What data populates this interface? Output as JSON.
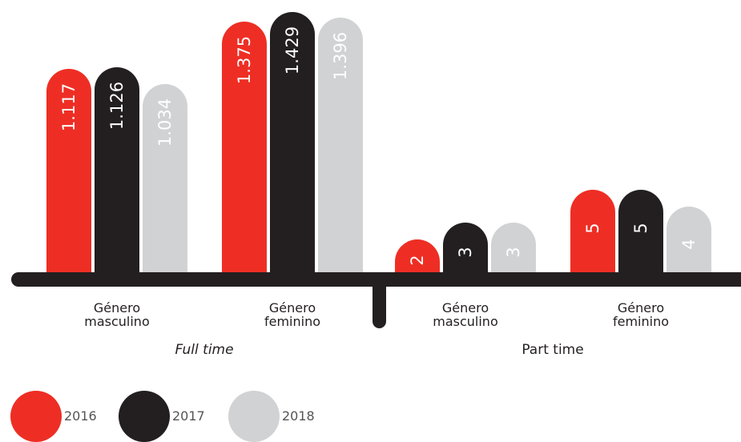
{
  "chart_data": [
    {
      "type": "bar",
      "title": "Full time",
      "categories": [
        "Género masculino",
        "Género feminino"
      ],
      "series": [
        {
          "name": "2016",
          "color": "#ee2e24",
          "values": [
            1117,
            1375
          ],
          "value_labels": [
            "1.117",
            "1.375"
          ]
        },
        {
          "name": "2017",
          "color": "#231f20",
          "values": [
            1126,
            1429
          ],
          "value_labels": [
            "1.126",
            "1.429"
          ]
        },
        {
          "name": "2018",
          "color": "#d1d2d4",
          "values": [
            1034,
            1396
          ],
          "value_labels": [
            "1.034",
            "1.396"
          ]
        }
      ],
      "ylim": [
        0,
        1450
      ]
    },
    {
      "type": "bar",
      "title": "Part time",
      "categories": [
        "Género masculino",
        "Género feminino"
      ],
      "series": [
        {
          "name": "2016",
          "color": "#ee2e24",
          "values": [
            2,
            5
          ]
        },
        {
          "name": "2017",
          "color": "#231f20",
          "values": [
            3,
            5
          ]
        },
        {
          "name": "2018",
          "color": "#d1d2d4",
          "values": [
            3,
            4
          ]
        }
      ],
      "ylim": [
        0,
        16
      ]
    }
  ]
}
